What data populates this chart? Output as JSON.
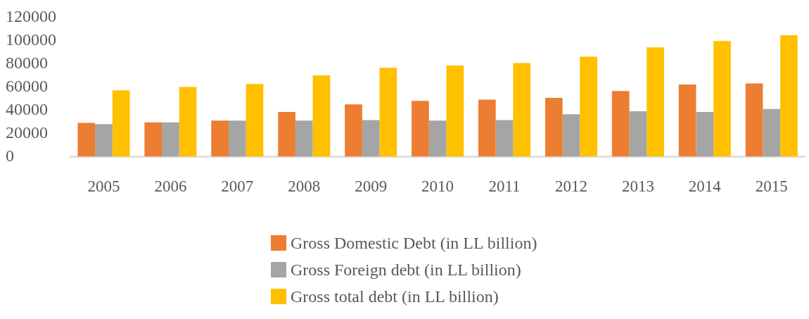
{
  "chart_data": {
    "type": "bar",
    "categories": [
      "2005",
      "2006",
      "2007",
      "2008",
      "2009",
      "2010",
      "2011",
      "2012",
      "2013",
      "2014",
      "2015"
    ],
    "series": [
      {
        "name": "Gross Domestic Debt (in LL billion)",
        "color": "#ed7d31",
        "values": [
          29000,
          29500,
          31000,
          38500,
          45000,
          48000,
          49000,
          50500,
          56500,
          62000,
          63000
        ]
      },
      {
        "name": "Gross Foreign debt (in LL billion)",
        "color": "#a5a5a5",
        "values": [
          28000,
          29500,
          31000,
          31000,
          31500,
          31000,
          31500,
          36500,
          39000,
          38500,
          41000
        ]
      },
      {
        "name": "Gross total debt (in LL billion)",
        "color": "#ffc000",
        "values": [
          57000,
          60000,
          62500,
          70000,
          76500,
          78500,
          80500,
          86000,
          94000,
          99500,
          104500
        ]
      }
    ],
    "ylim": [
      0,
      120000
    ],
    "yticks": [
      0,
      20000,
      40000,
      60000,
      80000,
      100000,
      120000
    ],
    "grid": false,
    "legend": "bottom"
  }
}
